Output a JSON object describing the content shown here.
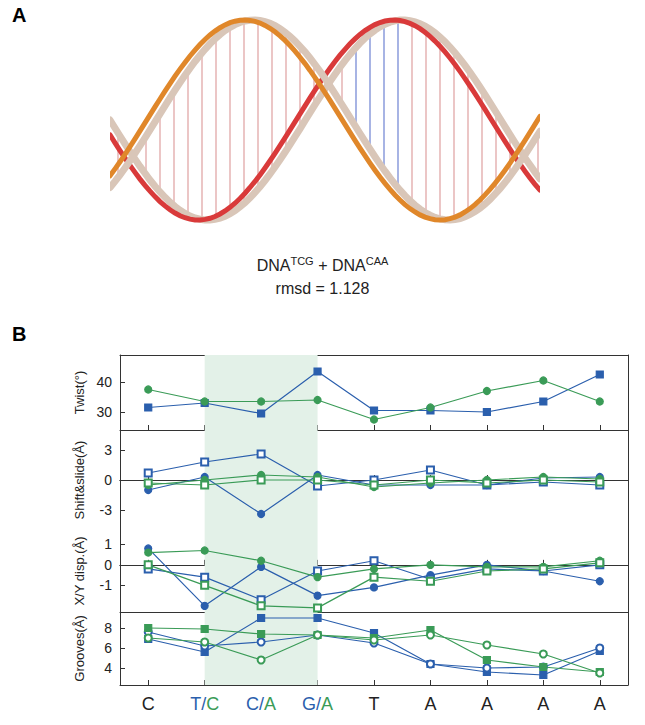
{
  "panel_labels": [
    "A",
    "B"
  ],
  "panel_a": {
    "caption": [
      {
        "text": "DNA"
      },
      {
        "text": "TCG",
        "sup": true
      },
      {
        "text": " + DNA"
      },
      {
        "text": "CAA",
        "sup": true
      }
    ],
    "rmsd": "rmsd = 1.128"
  },
  "highlight": [
    "T/C",
    "G/A"
  ],
  "chart_data": [
    {
      "type": "line",
      "y_label": "Twist(°)",
      "categories": [
        "C",
        "T/C",
        "C/A",
        "G/A",
        "T",
        "A",
        "A",
        "A",
        "A"
      ],
      "ylim": [
        24,
        49
      ],
      "yticks": [
        30,
        40
      ],
      "grid": false,
      "tick_labels": "y",
      "series": [
        {
          "color": "#2b5fad",
          "marker": "square",
          "values": [
            31.5,
            33,
            29.5,
            43.5,
            30.5,
            30.5,
            30,
            33.5,
            42.5
          ]
        },
        {
          "color": "#3a9b57",
          "marker": "circle",
          "values": [
            37.5,
            33.5,
            33.5,
            34,
            27.5,
            31.5,
            37,
            40.5,
            33.5
          ]
        }
      ]
    },
    {
      "type": "line",
      "y_label": "Shift&slide(Å)",
      "categories": [
        "C",
        "T/C",
        "C/A",
        "G/A",
        "T",
        "A",
        "A",
        "A",
        "A"
      ],
      "ylim": [
        -5,
        5
      ],
      "yticks": [
        -3,
        0,
        3
      ],
      "grid": false,
      "tick_labels": "y",
      "series": [
        {
          "color": "#2b5fad",
          "marker": "open_square",
          "values": [
            0.7,
            1.8,
            2.6,
            -0.6,
            0,
            1.0,
            -0.5,
            -0.2,
            -0.5
          ]
        },
        {
          "color": "#2b5fad",
          "marker": "circle",
          "values": [
            -1.0,
            0.3,
            -3.4,
            0.5,
            -0.5,
            -0.5,
            -0.5,
            0.2,
            0.3
          ]
        },
        {
          "color": "#3a9b57",
          "marker": "circle",
          "values": [
            -0.5,
            0.0,
            0.5,
            0.3,
            -0.7,
            -0.3,
            0.0,
            0.3,
            0.1
          ]
        },
        {
          "color": "#3a9b57",
          "marker": "open_square",
          "values": [
            -0.3,
            -0.5,
            0.0,
            0.0,
            -0.5,
            0.0,
            -0.3,
            0.0,
            -0.2
          ]
        }
      ]
    },
    {
      "type": "line",
      "y_label": "X/Y disp.(Å)",
      "categories": [
        "C",
        "T/C",
        "C/A",
        "G/A",
        "T",
        "A",
        "A",
        "A",
        "A"
      ],
      "ylim": [
        -2.3,
        1.7
      ],
      "yticks": [
        -1,
        0,
        1
      ],
      "grid": false,
      "tick_labels": "y",
      "series": [
        {
          "color": "#2b5fad",
          "marker": "circle",
          "values": [
            0.8,
            -2.0,
            -0.1,
            -1.5,
            -1.1,
            -0.5,
            0,
            -0.3,
            -0.8
          ]
        },
        {
          "color": "#2b5fad",
          "marker": "open_square",
          "values": [
            -0.2,
            -0.6,
            -1.7,
            -0.3,
            0.2,
            -0.7,
            -0.2,
            -0.3,
            0.0
          ]
        },
        {
          "color": "#3a9b57",
          "marker": "circle",
          "values": [
            0.6,
            0.7,
            0.2,
            -0.6,
            -0.2,
            0.0,
            -0.1,
            -0.1,
            0.2
          ]
        },
        {
          "color": "#3a9b57",
          "marker": "open_square",
          "values": [
            0.0,
            -1.0,
            -2.0,
            -2.1,
            -0.6,
            -0.8,
            -0.3,
            -0.2,
            0.1
          ]
        }
      ]
    },
    {
      "type": "line",
      "y_label": "Grooves(Å)",
      "categories": [
        "C",
        "T/C",
        "C/A",
        "G/A",
        "T",
        "A",
        "A",
        "A",
        "A"
      ],
      "ylim": [
        2.3,
        9.6
      ],
      "yticks": [
        4,
        6,
        8
      ],
      "grid": false,
      "series": [
        {
          "color": "#2b5fad",
          "marker": "square",
          "values": [
            6.9,
            5.6,
            9.0,
            9.0,
            7.5,
            4.4,
            3.6,
            3.3,
            5.7
          ]
        },
        {
          "color": "#2b5fad",
          "marker": "open_circle",
          "values": [
            7.6,
            6.2,
            6.6,
            7.3,
            6.5,
            4.4,
            4.0,
            4.1,
            6.0
          ]
        },
        {
          "color": "#3a9b57",
          "marker": "square",
          "values": [
            8.0,
            7.9,
            7.4,
            7.3,
            7.0,
            7.8,
            4.8,
            4.1,
            3.6
          ]
        },
        {
          "color": "#3a9b57",
          "marker": "open_circle",
          "values": [
            7.0,
            6.6,
            4.8,
            7.3,
            6.8,
            7.3,
            6.3,
            5.4,
            3.5
          ]
        }
      ]
    }
  ]
}
